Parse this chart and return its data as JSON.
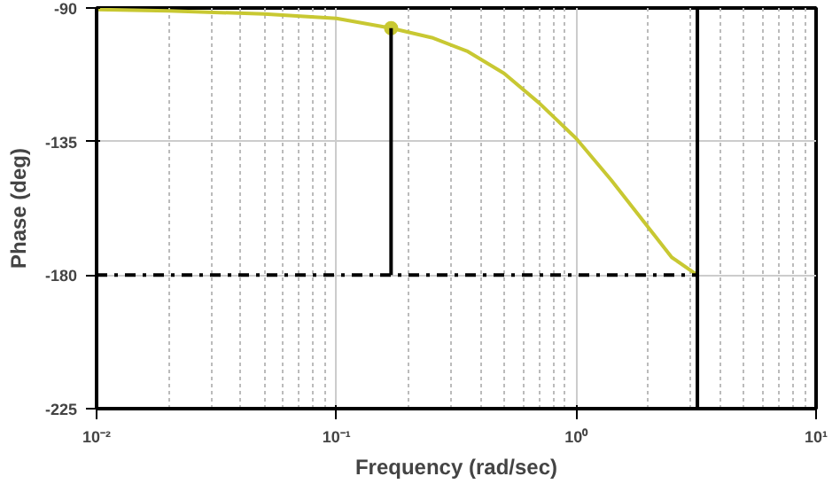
{
  "chart_data": {
    "type": "line",
    "xlabel": "Frequency (rad/sec)",
    "ylabel": "Phase (deg)",
    "log": "x",
    "grid": true,
    "xlim": [
      0.01,
      10
    ],
    "xticks": [
      {
        "value": 0.01,
        "label": "10⁻²"
      },
      {
        "value": 0.1,
        "label": "10⁻¹"
      },
      {
        "value": 1,
        "label": "10⁰"
      },
      {
        "value": 10,
        "label": "10¹"
      }
    ],
    "ylim": [
      -225,
      -90
    ],
    "yticks": [
      -225,
      -180,
      -135,
      -90
    ],
    "series": [
      {
        "color": "#c8c832",
        "x": [
          0.01,
          0.02,
          0.05,
          0.1,
          0.169,
          0.25,
          0.35,
          0.5,
          0.7,
          1,
          1.4,
          2,
          2.5,
          3.2
        ],
        "values": [
          -90.5,
          -91,
          -92,
          -93.5,
          -96.8,
          -100,
          -104.5,
          -112,
          -122,
          -134,
          -148,
          -164,
          -174,
          -180
        ]
      },
      {
        "type": "scatter",
        "color": "#c8c832",
        "marker": "circle",
        "x": [
          0.169
        ],
        "values": [
          -96.8
        ]
      },
      {
        "type": "line",
        "color": "#000000",
        "x": [
          0.169,
          0.169
        ],
        "values": [
          -96.8,
          -180
        ]
      },
      {
        "type": "line",
        "color": "#000000",
        "line_style": "dashed",
        "x": [
          0.01,
          3.2
        ],
        "values": [
          -180,
          -180
        ]
      }
    ],
    "ref_lines": [
      {
        "axis": "x",
        "value": 3.2,
        "color": "#000000"
      }
    ]
  }
}
